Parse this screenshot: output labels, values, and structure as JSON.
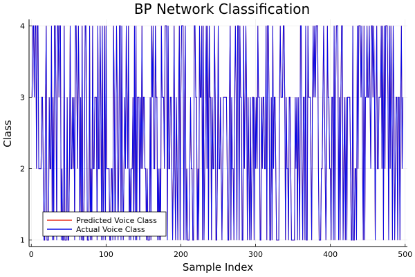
{
  "chart_data": {
    "type": "line",
    "title": "BP Network Classification",
    "xlabel": "Sample Index",
    "ylabel": "Class",
    "xlim": [
      -3,
      503
    ],
    "ylim": [
      0.91,
      4.09
    ],
    "x_ticks": [
      0,
      100,
      200,
      300,
      400,
      500
    ],
    "y_ticks": [
      1,
      2,
      3,
      4
    ],
    "grid": true,
    "legend_position": "bottom-left",
    "n_samples": 500,
    "series": [
      {
        "name": "Predicted Voice Class",
        "color": "#e8311e",
        "values": [
          3,
          4,
          4,
          3,
          4,
          4,
          2,
          4,
          4,
          2,
          2,
          2,
          2,
          3,
          3,
          2,
          1,
          1,
          3,
          4,
          1,
          1,
          1,
          3,
          2,
          2,
          4,
          1,
          3,
          1,
          4,
          4,
          3,
          1,
          4,
          4,
          3,
          4,
          4,
          1,
          2,
          1,
          1,
          4,
          1,
          1,
          1,
          3,
          1,
          1,
          2,
          4,
          2,
          2,
          3,
          2,
          3,
          1,
          4,
          4,
          3,
          2,
          4,
          3,
          1,
          3,
          1,
          4,
          1,
          1,
          2,
          4,
          4,
          3,
          1,
          1,
          1,
          4,
          1,
          2,
          1,
          4,
          2,
          2,
          3,
          3,
          3,
          1,
          4,
          2,
          2,
          4,
          3,
          1,
          4,
          1,
          2,
          4,
          1,
          4,
          2,
          2,
          2,
          2,
          1,
          1,
          2,
          2,
          1,
          4,
          3,
          1,
          2,
          4,
          3,
          1,
          2,
          4,
          4,
          1,
          4,
          2,
          1,
          2,
          3,
          2,
          4,
          3,
          2,
          4,
          1,
          2,
          1,
          2,
          2,
          3,
          1,
          4,
          1,
          4,
          1,
          3,
          3,
          3,
          1,
          3,
          2,
          4,
          2,
          3,
          3,
          2,
          2,
          1,
          2,
          1,
          1,
          1,
          3,
          1,
          4,
          3,
          4,
          2,
          2,
          4,
          3,
          3,
          1,
          2,
          1,
          2,
          1,
          4,
          3,
          3,
          3,
          2,
          4,
          4,
          4,
          1,
          4,
          2,
          2,
          3,
          3,
          2,
          1,
          2,
          4,
          2,
          1,
          3,
          2,
          1,
          3,
          4,
          1,
          3,
          4,
          4,
          4,
          1,
          3,
          4,
          1,
          2,
          1,
          1,
          1,
          2,
          3,
          2,
          2,
          1,
          1,
          4,
          4,
          3,
          3,
          1,
          2,
          1,
          4,
          3,
          3,
          4,
          1,
          4,
          1,
          2,
          3,
          4,
          2,
          4,
          1,
          4,
          3,
          3,
          1,
          3,
          2,
          2,
          4,
          3,
          1,
          1,
          2,
          4,
          2,
          2,
          3,
          2,
          1,
          2,
          3,
          3,
          3,
          3,
          3,
          2,
          1,
          1,
          3,
          4,
          1,
          3,
          2,
          2,
          1,
          3,
          4,
          3,
          1,
          4,
          4,
          1,
          4,
          3,
          3,
          1,
          1,
          4,
          2,
          3,
          4,
          3,
          1,
          3,
          2,
          1,
          3,
          1,
          2,
          3,
          3,
          1,
          3,
          2,
          3,
          2,
          4,
          3,
          3,
          1,
          1,
          3,
          2,
          3,
          3,
          2,
          2,
          4,
          1,
          4,
          4,
          3,
          1,
          1,
          3,
          1,
          4,
          2,
          3,
          3,
          2,
          1,
          1,
          1,
          1,
          3,
          4,
          3,
          3,
          3,
          4,
          4,
          3,
          1,
          3,
          2,
          2,
          1,
          3,
          3,
          2,
          1,
          1,
          1,
          1,
          1,
          3,
          2,
          3,
          1,
          3,
          2,
          1,
          4,
          4,
          2,
          1,
          3,
          3,
          1,
          4,
          1,
          1,
          4,
          3,
          3,
          3,
          2,
          1,
          3,
          4,
          3,
          4,
          3,
          4,
          4,
          4,
          2,
          1,
          1,
          1,
          2,
          2,
          3,
          4,
          3,
          2,
          1,
          2,
          4,
          3,
          3,
          2,
          2,
          1,
          3,
          3,
          1,
          4,
          1,
          3,
          4,
          4,
          4,
          1,
          3,
          1,
          3,
          4,
          4,
          1,
          2,
          3,
          1,
          3,
          1,
          3,
          3,
          3,
          3,
          2,
          1,
          1,
          4,
          1,
          1,
          2,
          2,
          1,
          4,
          2,
          4,
          4,
          4,
          3,
          4,
          2,
          1,
          4,
          1,
          3,
          3,
          4,
          3,
          3,
          4,
          3,
          2,
          4,
          4,
          3,
          4,
          3,
          1,
          3,
          4,
          2,
          2,
          3,
          3,
          3,
          4,
          2,
          4,
          1,
          4,
          2,
          4,
          4,
          4,
          3,
          1,
          4,
          2,
          4,
          3,
          1,
          4,
          3,
          1,
          2,
          3,
          3,
          1,
          3,
          3,
          1,
          3,
          4,
          2,
          3
        ]
      },
      {
        "name": "Actual Voice Class",
        "color": "#0a0ae6",
        "values": [
          3,
          4,
          4,
          3,
          4,
          4,
          2,
          4,
          4,
          2,
          2,
          2,
          2,
          3,
          3,
          2,
          1,
          1,
          3,
          4,
          1,
          1,
          1,
          3,
          2,
          2,
          4,
          1,
          3,
          1,
          4,
          4,
          3,
          1,
          4,
          4,
          3,
          4,
          4,
          1,
          2,
          1,
          1,
          4,
          1,
          1,
          1,
          3,
          1,
          1,
          2,
          4,
          2,
          2,
          3,
          2,
          3,
          1,
          4,
          4,
          3,
          2,
          4,
          3,
          1,
          3,
          1,
          4,
          1,
          1,
          2,
          4,
          4,
          3,
          1,
          1,
          1,
          4,
          1,
          2,
          1,
          4,
          2,
          2,
          3,
          3,
          3,
          1,
          4,
          2,
          2,
          4,
          3,
          1,
          4,
          1,
          2,
          4,
          1,
          4,
          2,
          2,
          2,
          2,
          1,
          1,
          2,
          2,
          1,
          4,
          3,
          1,
          2,
          4,
          3,
          1,
          2,
          4,
          4,
          1,
          4,
          2,
          1,
          2,
          3,
          2,
          4,
          3,
          2,
          4,
          1,
          2,
          1,
          2,
          2,
          3,
          1,
          4,
          1,
          4,
          1,
          3,
          3,
          3,
          1,
          3,
          2,
          4,
          2,
          3,
          3,
          2,
          2,
          1,
          2,
          1,
          1,
          1,
          3,
          1,
          4,
          3,
          4,
          2,
          2,
          4,
          3,
          3,
          1,
          2,
          1,
          2,
          1,
          4,
          3,
          3,
          3,
          2,
          4,
          4,
          4,
          1,
          4,
          2,
          2,
          3,
          3,
          2,
          1,
          2,
          4,
          2,
          1,
          3,
          2,
          1,
          3,
          4,
          1,
          3,
          4,
          4,
          4,
          1,
          3,
          4,
          1,
          2,
          1,
          1,
          1,
          2,
          3,
          2,
          2,
          1,
          1,
          4,
          4,
          3,
          3,
          1,
          2,
          1,
          4,
          3,
          3,
          4,
          1,
          4,
          1,
          2,
          3,
          4,
          2,
          4,
          1,
          4,
          3,
          3,
          1,
          3,
          2,
          2,
          4,
          3,
          1,
          1,
          2,
          4,
          2,
          2,
          3,
          2,
          1,
          2,
          3,
          3,
          3,
          3,
          3,
          2,
          1,
          1,
          3,
          4,
          1,
          3,
          2,
          2,
          1,
          3,
          4,
          3,
          1,
          4,
          4,
          1,
          4,
          3,
          3,
          1,
          1,
          4,
          2,
          3,
          4,
          3,
          1,
          3,
          2,
          1,
          3,
          1,
          2,
          3,
          3,
          1,
          3,
          2,
          3,
          2,
          4,
          3,
          3,
          1,
          1,
          3,
          2,
          3,
          3,
          2,
          2,
          4,
          1,
          4,
          4,
          3,
          1,
          1,
          3,
          1,
          4,
          2,
          3,
          3,
          2,
          1,
          1,
          1,
          1,
          3,
          4,
          3,
          3,
          3,
          4,
          4,
          3,
          1,
          3,
          2,
          2,
          1,
          3,
          3,
          2,
          1,
          1,
          1,
          1,
          1,
          3,
          2,
          3,
          1,
          3,
          2,
          1,
          4,
          4,
          2,
          1,
          3,
          3,
          1,
          4,
          1,
          1,
          4,
          3,
          3,
          3,
          2,
          1,
          3,
          4,
          3,
          4,
          3,
          4,
          4,
          4,
          2,
          1,
          1,
          1,
          2,
          2,
          3,
          4,
          3,
          2,
          1,
          2,
          4,
          3,
          3,
          2,
          2,
          1,
          3,
          3,
          1,
          4,
          1,
          3,
          4,
          4,
          4,
          1,
          3,
          1,
          3,
          4,
          4,
          1,
          2,
          3,
          1,
          3,
          1,
          3,
          3,
          3,
          3,
          2,
          1,
          1,
          4,
          1,
          1,
          2,
          2,
          1,
          4,
          2,
          4,
          4,
          4,
          3,
          4,
          2,
          1,
          4,
          1,
          3,
          3,
          4,
          3,
          3,
          4,
          3,
          2,
          4,
          4,
          3,
          4,
          3,
          1,
          3,
          4,
          2,
          2,
          3,
          3,
          3,
          4,
          2,
          4,
          1,
          4,
          2,
          4,
          4,
          4,
          3,
          1,
          4,
          2,
          4,
          3,
          1,
          4,
          3,
          1,
          2,
          3,
          3,
          1,
          3,
          3,
          1,
          3,
          4,
          2,
          3
        ]
      }
    ]
  }
}
